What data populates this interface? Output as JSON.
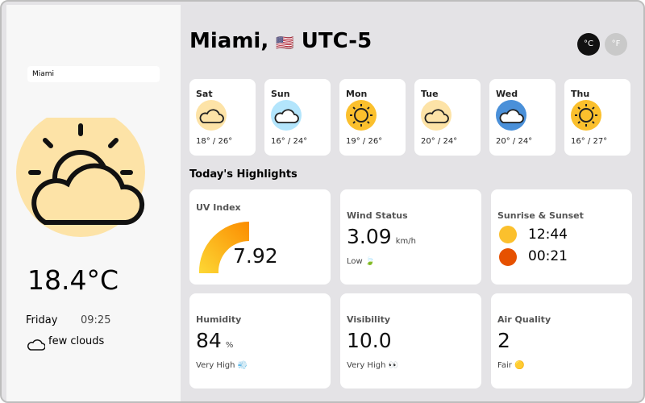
{
  "search": "Miami",
  "current": {
    "temperature": "18.4°C",
    "day": "Friday",
    "time": "09:25",
    "description": "few clouds"
  },
  "header": {
    "city": "Miami,",
    "flag": "🇺🇸",
    "timezone": "UTC-5",
    "units": [
      "°C",
      "°F"
    ]
  },
  "forecast": [
    {
      "day": "Sat",
      "temps": "18° / 26°"
    },
    {
      "day": "Sun",
      "temps": "16° / 24°"
    },
    {
      "day": "Mon",
      "temps": "19° / 26°"
    },
    {
      "day": "Tue",
      "temps": "20° / 24°"
    },
    {
      "day": "Wed",
      "temps": "20° / 24°"
    },
    {
      "day": "Thu",
      "temps": "16° / 27°"
    }
  ],
  "highlights_title": "Today's Highlights",
  "highlights": {
    "uv": {
      "label": "UV Index",
      "value": "7.92"
    },
    "wind": {
      "label": "Wind Status",
      "value": "3.09",
      "unit": "km/h",
      "note": "Low 🍃"
    },
    "sun": {
      "label": "Sunrise & Sunset",
      "sunrise": "12:44",
      "sunset": "00:21"
    },
    "humidity": {
      "label": "Humidity",
      "value": "84",
      "unit": "%",
      "note": "Very High 💨"
    },
    "visibility": {
      "label": "Visibility",
      "value": "10.0",
      "note": "Very High 👀"
    },
    "air": {
      "label": "Air Quality",
      "value": "2",
      "note": "Fair 🟡"
    }
  }
}
